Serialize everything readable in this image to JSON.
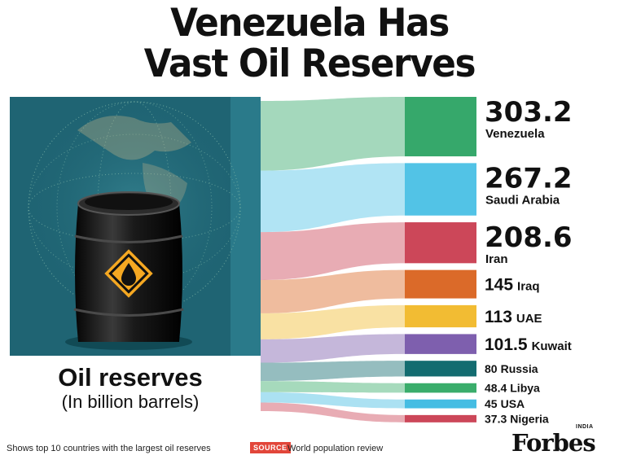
{
  "title_lines": [
    "Venezuela Has",
    "Vast Oil Reserves"
  ],
  "left_panel": {
    "label": "Oil reserves",
    "sublabel": "(In billion barrels)"
  },
  "chart_data": {
    "type": "bar",
    "title": "Venezuela Has Vast Oil Reserves",
    "categories": [
      "Venezuela",
      "Saudi Arabia",
      "Iran",
      "Iraq",
      "UAE",
      "Kuwait",
      "Russia",
      "Libya",
      "USA",
      "Nigeria"
    ],
    "values": [
      303.2,
      267.2,
      208.6,
      145,
      113,
      101.5,
      80,
      48.4,
      45,
      37.3
    ],
    "value_labels": [
      "303.2",
      "267.2",
      "208.6",
      "145",
      "113",
      "101.5",
      "80",
      "48.4",
      "45",
      "37.3"
    ],
    "unit": "(In billion barrels)",
    "colors": [
      "#36a86b",
      "#52c3e6",
      "#cc4759",
      "#db6a29",
      "#f2bc33",
      "#7e5fae",
      "#136c70",
      "#3aad6b",
      "#45bde3",
      "#cc4759"
    ]
  },
  "colors": {
    "panel_bg": "#1f6473",
    "panel_stripe": "#2a7a8a",
    "barrel_label": "#f5a822"
  },
  "footer": {
    "note": "Shows top 10 countries with the largest oil reserves",
    "source_label": "SOURCE",
    "source": "World population review"
  },
  "brand": {
    "name": "Forbes",
    "edition": "INDIA"
  }
}
